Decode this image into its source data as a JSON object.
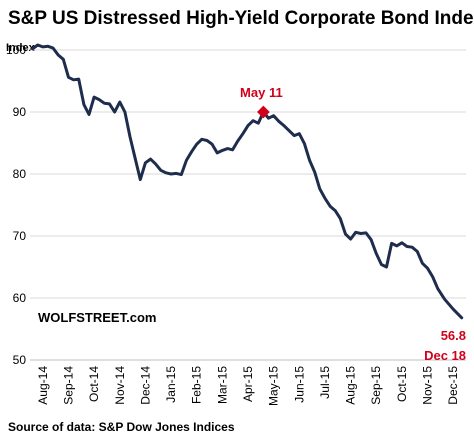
{
  "chart_data": {
    "type": "line",
    "title": "S&P US Distressed High-Yield Corporate Bond Index",
    "ylabel": "Index",
    "ylim": [
      50,
      100
    ],
    "yticks": [
      50,
      60,
      70,
      80,
      90,
      100
    ],
    "grid": "horizontal",
    "x_labels": [
      "Aug-14",
      "Sep-14",
      "Oct-14",
      "Nov-14",
      "Dec-14",
      "Jan-15",
      "Feb-15",
      "Mar-15",
      "Apr-15",
      "May-15",
      "Jun-15",
      "Jul-15",
      "Aug-15",
      "Sep-15",
      "Oct-15",
      "Nov-15",
      "Dec-15"
    ],
    "series": [
      {
        "color": "#1f2d4d",
        "points": [
          [
            "Aug-14",
            100.2
          ],
          [
            "Aug-14",
            100.8
          ],
          [
            "Aug-14",
            100.5
          ],
          [
            "Aug-14",
            100.6
          ],
          [
            "Aug-14",
            100.3
          ],
          [
            "Sep-14",
            99.2
          ],
          [
            "Sep-14",
            98.5
          ],
          [
            "Sep-14",
            95.6
          ],
          [
            "Sep-14",
            95.2
          ],
          [
            "Sep-14",
            95.3
          ],
          [
            "Oct-14",
            91.2
          ],
          [
            "Oct-14",
            89.6
          ],
          [
            "Oct-14",
            92.4
          ],
          [
            "Oct-14",
            92.0
          ],
          [
            "Oct-14",
            91.4
          ],
          [
            "Nov-14",
            91.3
          ],
          [
            "Nov-14",
            90.0
          ],
          [
            "Nov-14",
            91.6
          ],
          [
            "Nov-14",
            90.0
          ],
          [
            "Nov-14",
            86.0
          ],
          [
            "Dec-14",
            82.5
          ],
          [
            "Dec-14",
            79.1
          ],
          [
            "Dec-14",
            81.8
          ],
          [
            "Dec-14",
            82.4
          ],
          [
            "Dec-14",
            81.6
          ],
          [
            "Jan-15",
            80.6
          ],
          [
            "Jan-15",
            80.2
          ],
          [
            "Jan-15",
            80.0
          ],
          [
            "Jan-15",
            80.1
          ],
          [
            "Jan-15",
            79.9
          ],
          [
            "Feb-15",
            82.2
          ],
          [
            "Feb-15",
            83.6
          ],
          [
            "Feb-15",
            84.8
          ],
          [
            "Feb-15",
            85.6
          ],
          [
            "Feb-15",
            85.4
          ],
          [
            "Mar-15",
            84.8
          ],
          [
            "Mar-15",
            83.4
          ],
          [
            "Mar-15",
            83.8
          ],
          [
            "Mar-15",
            84.1
          ],
          [
            "Mar-15",
            83.9
          ],
          [
            "Apr-15",
            85.3
          ],
          [
            "Apr-15",
            86.5
          ],
          [
            "Apr-15",
            87.8
          ],
          [
            "Apr-15",
            88.6
          ],
          [
            "Apr-15",
            88.2
          ],
          [
            "May-15",
            90.0
          ],
          [
            "May-15",
            89.0
          ],
          [
            "May-15",
            89.4
          ],
          [
            "May-15",
            88.5
          ],
          [
            "May-15",
            87.8
          ],
          [
            "Jun-15",
            87.0
          ],
          [
            "Jun-15",
            86.2
          ],
          [
            "Jun-15",
            86.5
          ],
          [
            "Jun-15",
            84.9
          ],
          [
            "Jun-15",
            82.2
          ],
          [
            "Jul-15",
            80.3
          ],
          [
            "Jul-15",
            77.6
          ],
          [
            "Jul-15",
            76.1
          ],
          [
            "Jul-15",
            74.8
          ],
          [
            "Jul-15",
            74.1
          ],
          [
            "Aug-15",
            72.8
          ],
          [
            "Aug-15",
            70.3
          ],
          [
            "Aug-15",
            69.5
          ],
          [
            "Aug-15",
            70.6
          ],
          [
            "Aug-15",
            70.4
          ],
          [
            "Sep-15",
            70.5
          ],
          [
            "Sep-15",
            69.4
          ],
          [
            "Sep-15",
            67.2
          ],
          [
            "Sep-15",
            65.4
          ],
          [
            "Sep-15",
            65.0
          ],
          [
            "Oct-15",
            68.8
          ],
          [
            "Oct-15",
            68.4
          ],
          [
            "Oct-15",
            68.9
          ],
          [
            "Oct-15",
            68.3
          ],
          [
            "Oct-15",
            68.2
          ],
          [
            "Nov-15",
            67.5
          ],
          [
            "Nov-15",
            65.6
          ],
          [
            "Nov-15",
            64.8
          ],
          [
            "Nov-15",
            63.4
          ],
          [
            "Nov-15",
            61.5
          ],
          [
            "Dec-15",
            59.8
          ],
          [
            "Dec-15",
            58.2
          ],
          [
            "Dec-15",
            56.8
          ]
        ]
      }
    ],
    "annotations": {
      "peak_label": "May 11",
      "peak_value": 90.0,
      "peak_color": "#d0021b",
      "end_value_label": "56.8",
      "end_date_label": "Dec 18",
      "end_color": "#d0021b"
    },
    "watermark": "WOLFSTREET.com",
    "source": "Source of data: S&P Dow Jones Indices"
  }
}
